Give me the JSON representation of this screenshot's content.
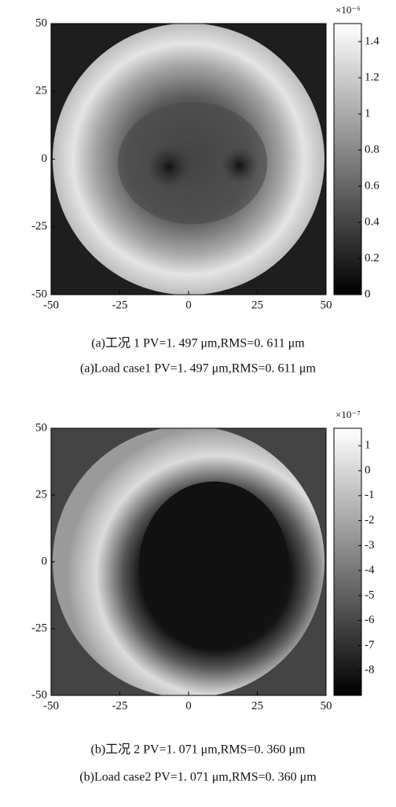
{
  "chart_data": [
    {
      "type": "heatmap",
      "xlim": [
        -50,
        50
      ],
      "ylim": [
        -50,
        50
      ],
      "xticks": [
        -50,
        -25,
        0,
        25,
        50
      ],
      "yticks": [
        -50,
        -25,
        0,
        25,
        50
      ],
      "colormap": "gray",
      "colorbar": {
        "clim": [
          0,
          1.5
        ],
        "ticks": [
          0,
          0.2,
          0.4,
          0.6,
          0.8,
          1.0,
          1.2,
          1.4
        ],
        "exponent": "×10⁻⁶"
      },
      "captions": [
        "(a)工况 1 PV=1. 497 μm,RMS=0. 611 μm",
        "(a)Load case1 PV=1. 497 μm,RMS=0. 611 μm"
      ]
    },
    {
      "type": "heatmap",
      "xlim": [
        -50,
        50
      ],
      "ylim": [
        -50,
        50
      ],
      "xticks": [
        -50,
        -25,
        0,
        25,
        50
      ],
      "yticks": [
        -50,
        -25,
        0,
        25,
        50
      ],
      "colormap": "gray",
      "colorbar": {
        "clim": [
          -9,
          1.7
        ],
        "ticks": [
          1,
          0,
          -1,
          -2,
          -3,
          -4,
          -5,
          -6,
          -7,
          -8
        ],
        "exponent": "×10⁻⁷"
      },
      "captions": [
        "(b)工况 2 PV=1. 071 μm,RMS=0. 360 μm",
        "(b)Load case2 PV=1. 071 μm,RMS=0. 360 μm"
      ]
    }
  ]
}
